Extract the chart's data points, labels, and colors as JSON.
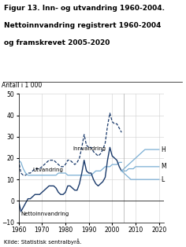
{
  "title_line1": "Figur 13. Inn- og utvandring 1960-2004.",
  "title_line2": "Nettoinnvandring registrert 1960-2004",
  "title_line3": "og framskrevet 2005-2020",
  "ylabel": "Antall i 1 000",
  "source": "Kilde: Statistisk sentralbyrå.",
  "xlim": [
    1960,
    2022
  ],
  "ylim": [
    -10,
    50
  ],
  "yticks": [
    -10,
    0,
    10,
    20,
    30,
    40,
    50
  ],
  "xticks": [
    1960,
    1970,
    1980,
    1990,
    2000,
    2010,
    2020
  ],
  "innvandring_years": [
    1960,
    1961,
    1962,
    1963,
    1964,
    1965,
    1966,
    1967,
    1968,
    1969,
    1970,
    1971,
    1972,
    1973,
    1974,
    1975,
    1976,
    1977,
    1978,
    1979,
    1980,
    1981,
    1982,
    1983,
    1984,
    1985,
    1986,
    1987,
    1988,
    1989,
    1990,
    1991,
    1992,
    1993,
    1994,
    1995,
    1996,
    1997,
    1998,
    1999,
    2000,
    2001,
    2002,
    2003,
    2004
  ],
  "innvandring_values": [
    19,
    13,
    12,
    12,
    13,
    13,
    14,
    15,
    15,
    15,
    16,
    17,
    18,
    19,
    19,
    19,
    18,
    17,
    16,
    16,
    17,
    19,
    19,
    18,
    17,
    18,
    20,
    25,
    31,
    26,
    25,
    25,
    23,
    22,
    21,
    22,
    24,
    27,
    35,
    41,
    37,
    36,
    36,
    34,
    32
  ],
  "utvandring_years": [
    1960,
    1961,
    1962,
    1963,
    1964,
    1965,
    1966,
    1967,
    1968,
    1969,
    1970,
    1971,
    1972,
    1973,
    1974,
    1975,
    1976,
    1977,
    1978,
    1979,
    1980,
    1981,
    1982,
    1983,
    1984,
    1985,
    1986,
    1987,
    1988,
    1989,
    1990,
    1991,
    1992,
    1993,
    1994,
    1995,
    1996,
    1997,
    1998,
    1999,
    2000,
    2001,
    2002,
    2003,
    2004
  ],
  "utvandring_values": [
    19,
    18,
    15,
    13,
    12,
    12,
    12,
    12,
    12,
    12,
    12,
    12,
    12,
    12,
    12,
    12,
    12,
    13,
    13,
    13,
    13,
    12,
    12,
    12,
    12,
    12,
    12,
    12,
    12,
    12,
    12,
    12,
    13,
    14,
    14,
    14,
    15,
    16,
    16,
    16,
    17,
    17,
    17,
    18,
    18
  ],
  "netto_years": [
    1960,
    1961,
    1962,
    1963,
    1964,
    1965,
    1966,
    1967,
    1968,
    1969,
    1970,
    1971,
    1972,
    1973,
    1974,
    1975,
    1976,
    1977,
    1978,
    1979,
    1980,
    1981,
    1982,
    1983,
    1984,
    1985,
    1986,
    1987,
    1988,
    1989,
    1990,
    1991,
    1992,
    1993,
    1994,
    1995,
    1996,
    1997,
    1998,
    1999,
    2000,
    2001,
    2002,
    2003,
    2004
  ],
  "netto_values": [
    0,
    -5,
    -3,
    -1,
    1,
    1,
    2,
    3,
    3,
    3,
    4,
    5,
    6,
    7,
    7,
    7,
    6,
    4,
    3,
    3,
    4,
    7,
    7,
    6,
    5,
    5,
    8,
    13,
    19,
    14,
    13,
    13,
    10,
    8,
    7,
    8,
    9,
    11,
    19,
    25,
    21,
    20,
    19,
    16,
    14
  ],
  "forecast_H_years": [
    2004,
    2005,
    2006,
    2007,
    2008,
    2009,
    2010,
    2011,
    2012,
    2013,
    2014,
    2015,
    2016,
    2017,
    2018,
    2019,
    2020
  ],
  "forecast_H_values": [
    14,
    15,
    16,
    17,
    18,
    19,
    20,
    21,
    22,
    23,
    24,
    24,
    24,
    24,
    24,
    24,
    24
  ],
  "forecast_M_years": [
    2004,
    2005,
    2006,
    2007,
    2008,
    2009,
    2010,
    2011,
    2012,
    2013,
    2014,
    2015,
    2016,
    2017,
    2018,
    2019,
    2020
  ],
  "forecast_M_values": [
    14,
    14,
    14,
    15,
    15,
    15,
    16,
    16,
    16,
    16,
    16,
    16,
    16,
    16,
    16,
    16,
    16
  ],
  "forecast_L_years": [
    2004,
    2005,
    2006,
    2007,
    2008,
    2009,
    2010,
    2011,
    2012,
    2013,
    2014,
    2015,
    2016,
    2017,
    2018,
    2019,
    2020
  ],
  "forecast_L_values": [
    14,
    13,
    12,
    11,
    10,
    10,
    10,
    10,
    10,
    10,
    10,
    10,
    10,
    10,
    10,
    10,
    10
  ],
  "color_innvandring": "#1a3a6b",
  "color_utvandring": "#7bafd4",
  "color_netto": "#1a3a6b",
  "color_forecast": "#7bafd4",
  "label_innvandring": "Innvandring",
  "label_utvandring": "Utvandring",
  "label_netto": "Nettoinnvandring",
  "label_H": "H",
  "label_M": "M",
  "label_L": "L"
}
